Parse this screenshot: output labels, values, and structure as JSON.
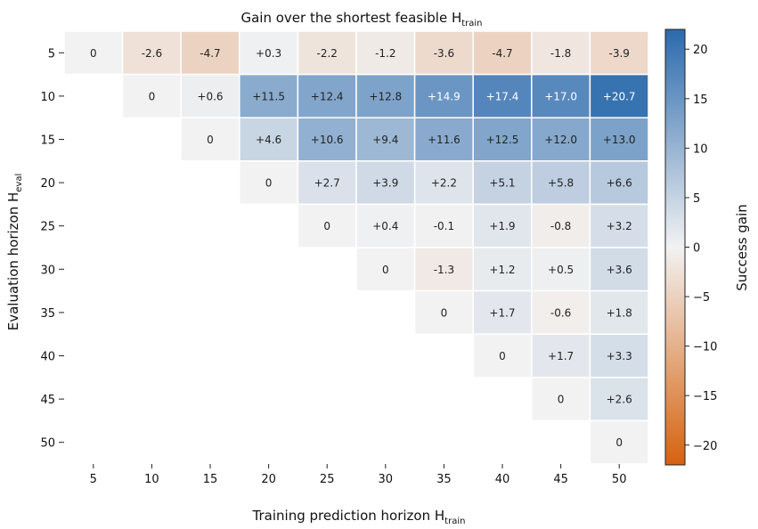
{
  "chart_data": {
    "type": "heatmap",
    "title_main": "Gain over the shortest feasible H",
    "title_sub": "train",
    "xlabel_main": "Training prediction horizon H",
    "xlabel_sub": "train",
    "ylabel_main": "Evaluation horizon H",
    "ylabel_sub": "eval",
    "colorbar_label": "Success gain",
    "x_ticks": [
      "5",
      "10",
      "15",
      "20",
      "25",
      "30",
      "35",
      "40",
      "45",
      "50"
    ],
    "y_ticks": [
      "5",
      "10",
      "15",
      "20",
      "25",
      "30",
      "35",
      "40",
      "45",
      "50"
    ],
    "colorbar_ticks": [
      "20",
      "15",
      "10",
      "5",
      "0",
      "−5",
      "−10",
      "−15",
      "−20"
    ],
    "colorbar_tick_values": [
      20,
      15,
      10,
      5,
      0,
      -5,
      -10,
      -15,
      -20
    ],
    "vlim": [
      -22,
      22
    ],
    "colormap": {
      "negative": "#d6620e",
      "zero": "#f2f2f2",
      "positive": "#2b6aad"
    },
    "rows": [
      {
        "y": "5",
        "cells": [
          {
            "x": "5",
            "v": 0,
            "t": "0"
          },
          {
            "x": "10",
            "v": -2.6,
            "t": "-2.6"
          },
          {
            "x": "15",
            "v": -4.7,
            "t": "-4.7"
          },
          {
            "x": "20",
            "v": 0.3,
            "t": "+0.3"
          },
          {
            "x": "25",
            "v": -2.2,
            "t": "-2.2"
          },
          {
            "x": "30",
            "v": -1.2,
            "t": "-1.2"
          },
          {
            "x": "35",
            "v": -3.6,
            "t": "-3.6"
          },
          {
            "x": "40",
            "v": -4.7,
            "t": "-4.7"
          },
          {
            "x": "45",
            "v": -1.8,
            "t": "-1.8"
          },
          {
            "x": "50",
            "v": -3.9,
            "t": "-3.9"
          }
        ]
      },
      {
        "y": "10",
        "cells": [
          {
            "x": "10",
            "v": 0,
            "t": "0"
          },
          {
            "x": "15",
            "v": 0.6,
            "t": "+0.6"
          },
          {
            "x": "20",
            "v": 11.5,
            "t": "+11.5"
          },
          {
            "x": "25",
            "v": 12.4,
            "t": "+12.4"
          },
          {
            "x": "30",
            "v": 12.8,
            "t": "+12.8"
          },
          {
            "x": "35",
            "v": 14.9,
            "t": "+14.9"
          },
          {
            "x": "40",
            "v": 17.4,
            "t": "+17.4"
          },
          {
            "x": "45",
            "v": 17.0,
            "t": "+17.0"
          },
          {
            "x": "50",
            "v": 20.7,
            "t": "+20.7"
          }
        ]
      },
      {
        "y": "15",
        "cells": [
          {
            "x": "15",
            "v": 0,
            "t": "0"
          },
          {
            "x": "20",
            "v": 4.6,
            "t": "+4.6"
          },
          {
            "x": "25",
            "v": 10.6,
            "t": "+10.6"
          },
          {
            "x": "30",
            "v": 9.4,
            "t": "+9.4"
          },
          {
            "x": "35",
            "v": 11.6,
            "t": "+11.6"
          },
          {
            "x": "40",
            "v": 12.5,
            "t": "+12.5"
          },
          {
            "x": "45",
            "v": 12.0,
            "t": "+12.0"
          },
          {
            "x": "50",
            "v": 13.0,
            "t": "+13.0"
          }
        ]
      },
      {
        "y": "20",
        "cells": [
          {
            "x": "20",
            "v": 0,
            "t": "0"
          },
          {
            "x": "25",
            "v": 2.7,
            "t": "+2.7"
          },
          {
            "x": "30",
            "v": 3.9,
            "t": "+3.9"
          },
          {
            "x": "35",
            "v": 2.2,
            "t": "+2.2"
          },
          {
            "x": "40",
            "v": 5.1,
            "t": "+5.1"
          },
          {
            "x": "45",
            "v": 5.8,
            "t": "+5.8"
          },
          {
            "x": "50",
            "v": 6.6,
            "t": "+6.6"
          }
        ]
      },
      {
        "y": "25",
        "cells": [
          {
            "x": "25",
            "v": 0,
            "t": "0"
          },
          {
            "x": "30",
            "v": 0.4,
            "t": "+0.4"
          },
          {
            "x": "35",
            "v": -0.1,
            "t": "-0.1"
          },
          {
            "x": "40",
            "v": 1.9,
            "t": "+1.9"
          },
          {
            "x": "45",
            "v": -0.8,
            "t": "-0.8"
          },
          {
            "x": "50",
            "v": 3.2,
            "t": "+3.2"
          }
        ]
      },
      {
        "y": "30",
        "cells": [
          {
            "x": "30",
            "v": 0,
            "t": "0"
          },
          {
            "x": "35",
            "v": -1.3,
            "t": "-1.3"
          },
          {
            "x": "40",
            "v": 1.2,
            "t": "+1.2"
          },
          {
            "x": "45",
            "v": 0.5,
            "t": "+0.5"
          },
          {
            "x": "50",
            "v": 3.6,
            "t": "+3.6"
          }
        ]
      },
      {
        "y": "35",
        "cells": [
          {
            "x": "35",
            "v": 0,
            "t": "0"
          },
          {
            "x": "40",
            "v": 1.7,
            "t": "+1.7"
          },
          {
            "x": "45",
            "v": -0.6,
            "t": "-0.6"
          },
          {
            "x": "50",
            "v": 1.8,
            "t": "+1.8"
          }
        ]
      },
      {
        "y": "40",
        "cells": [
          {
            "x": "40",
            "v": 0,
            "t": "0"
          },
          {
            "x": "45",
            "v": 1.7,
            "t": "+1.7"
          },
          {
            "x": "50",
            "v": 3.3,
            "t": "+3.3"
          }
        ]
      },
      {
        "y": "45",
        "cells": [
          {
            "x": "45",
            "v": 0,
            "t": "0"
          },
          {
            "x": "50",
            "v": 2.6,
            "t": "+2.6"
          }
        ]
      },
      {
        "y": "50",
        "cells": [
          {
            "x": "50",
            "v": 0,
            "t": "0"
          }
        ]
      }
    ]
  }
}
